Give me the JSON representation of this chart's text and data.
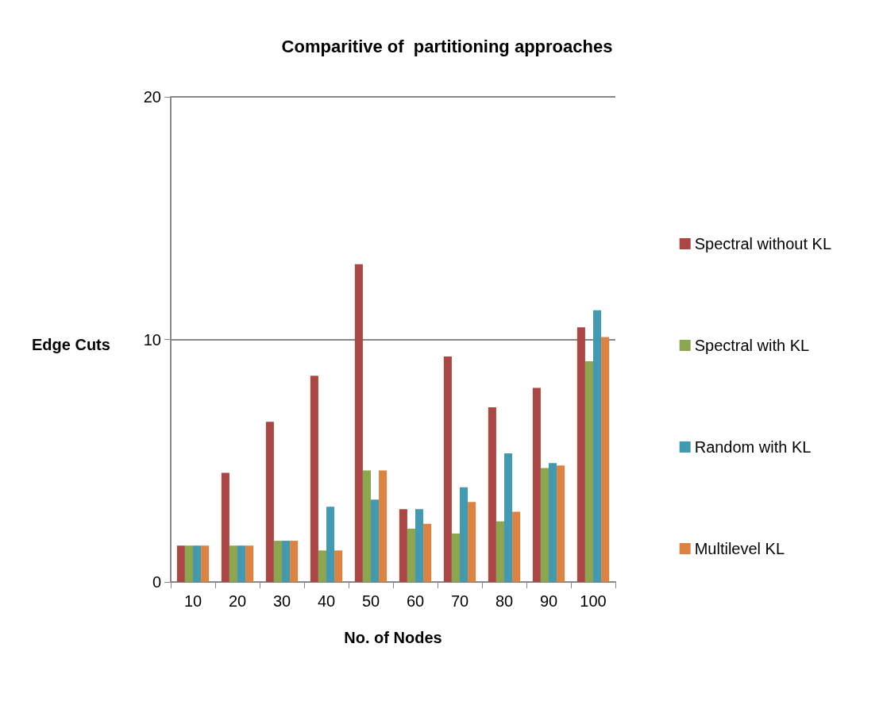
{
  "chart_data": {
    "type": "bar",
    "title": "Comparitive of  partitioning approaches",
    "xlabel": "No. of Nodes",
    "ylabel": "Edge Cuts",
    "categories": [
      "10",
      "20",
      "30",
      "40",
      "50",
      "60",
      "70",
      "80",
      "90",
      "100"
    ],
    "series": [
      {
        "name": "Spectral without KL",
        "color": "#a94744",
        "values": [
          1.5,
          4.5,
          6.6,
          8.5,
          13.1,
          3.0,
          9.3,
          7.2,
          8.0,
          10.5
        ]
      },
      {
        "name": "Spectral with KL",
        "color": "#8ca550",
        "values": [
          1.5,
          1.5,
          1.7,
          1.3,
          4.6,
          2.2,
          2.0,
          2.5,
          4.7,
          9.1
        ]
      },
      {
        "name": "Random with KL",
        "color": "#4299b0",
        "values": [
          1.5,
          1.5,
          1.7,
          3.1,
          3.4,
          3.0,
          3.9,
          5.3,
          4.9,
          11.2
        ]
      },
      {
        "name": "Multilevel KL",
        "color": "#db8342",
        "values": [
          1.5,
          1.5,
          1.7,
          1.3,
          4.6,
          2.4,
          3.3,
          2.9,
          4.8,
          10.1
        ]
      }
    ],
    "ylim": [
      0,
      20
    ],
    "yticks": [
      0,
      10,
      20
    ],
    "grid": "y",
    "legend": "right"
  }
}
